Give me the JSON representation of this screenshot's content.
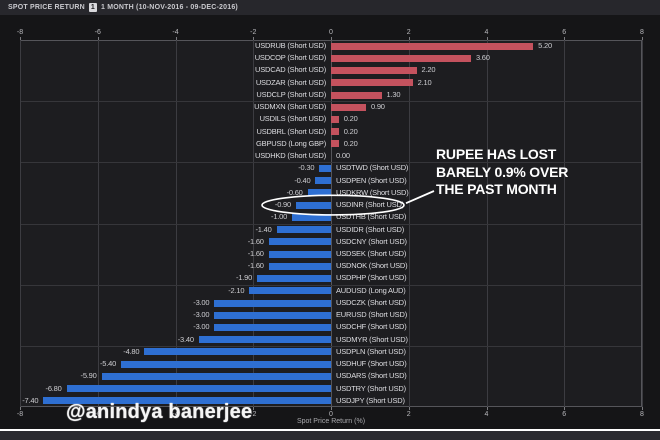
{
  "title_bar": {
    "label": "SPOT PRICE RETURN",
    "series_badge": "1",
    "period": "1 MONTH (10-NOV-2016 - 09-DEC-2016)"
  },
  "chart_data": {
    "type": "bar",
    "orientation": "horizontal",
    "title": "SPOT PRICE RETURN 1 MONTH (10-NOV-2016 - 09-DEC-2016)",
    "xlabel": "Spot Price Return (%)",
    "xlim": [
      -8,
      8
    ],
    "ticks": [
      -8,
      -6,
      -4,
      -2,
      0,
      2,
      4,
      6,
      8
    ],
    "grid": "on",
    "positive_color": "#c4525e",
    "negative_color": "#2e6fd2",
    "bars": [
      {
        "label": "USDRUB (Short USD)",
        "value": 5.2
      },
      {
        "label": "USDCOP (Short USD)",
        "value": 3.6
      },
      {
        "label": "USDCAD (Short USD)",
        "value": 2.2
      },
      {
        "label": "USDZAR (Short USD)",
        "value": 2.1
      },
      {
        "label": "USDCLP (Short USD)",
        "value": 1.3
      },
      {
        "label": "USDMXN (Short USD)",
        "value": 0.9
      },
      {
        "label": "USDILS (Short USD)",
        "value": 0.2
      },
      {
        "label": "USDBRL (Short USD)",
        "value": 0.2
      },
      {
        "label": "GBPUSD (Long GBP)",
        "value": 0.2
      },
      {
        "label": "USDHKD (Short USD)",
        "value": 0.0
      },
      {
        "label": "USDTWD (Short USD)",
        "value": -0.3
      },
      {
        "label": "USDPEN (Short USD)",
        "value": -0.4
      },
      {
        "label": "USDKRW (Short USD)",
        "value": -0.6
      },
      {
        "label": "USDINR (Short USD)",
        "value": -0.9,
        "highlight": true
      },
      {
        "label": "USDTHB (Short USD)",
        "value": -1.0
      },
      {
        "label": "USDIDR (Short USD)",
        "value": -1.4
      },
      {
        "label": "USDCNY (Short USD)",
        "value": -1.6
      },
      {
        "label": "USDSEK (Short USD)",
        "value": -1.6
      },
      {
        "label": "USDNOK (Short USD)",
        "value": -1.6
      },
      {
        "label": "USDPHP (Short USD)",
        "value": -1.9
      },
      {
        "label": "AUDUSD (Long AUD)",
        "value": -2.1
      },
      {
        "label": "USDCZK (Short USD)",
        "value": -3.0
      },
      {
        "label": "EURUSD (Short USD)",
        "value": -3.0
      },
      {
        "label": "USDCHF (Short USD)",
        "value": -3.0
      },
      {
        "label": "USDMYR (Short USD)",
        "value": -3.4
      },
      {
        "label": "USDPLN (Short USD)",
        "value": -4.8
      },
      {
        "label": "USDHUF (Short USD)",
        "value": -5.4
      },
      {
        "label": "USDARS (Short USD)",
        "value": -5.9
      },
      {
        "label": "USDTRY (Short USD)",
        "value": -6.8
      },
      {
        "label": "USDJPY (Short USD)",
        "value": -7.4
      }
    ]
  },
  "annotation": {
    "lines": [
      "RUPEE HAS LOST",
      "BARELY 0.9% OVER",
      "THE PAST MONTH"
    ],
    "highlighted_bar": "USDINR (Short USD)"
  },
  "watermark": "@anindya banerjee"
}
